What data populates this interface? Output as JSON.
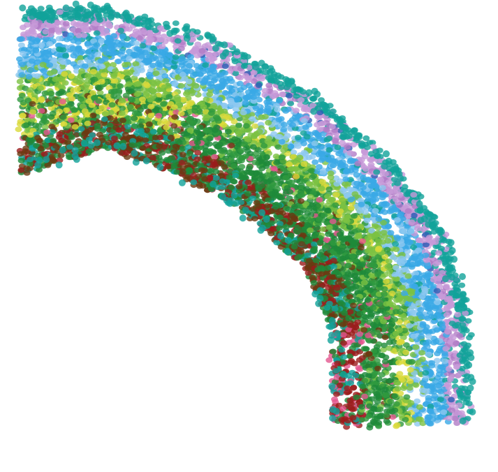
{
  "clusters": [
    {
      "color": "#9b1c1c"
    },
    {
      "color": "#6b3a12"
    },
    {
      "color": "#1e8a3a"
    },
    {
      "color": "#2f9a3f"
    },
    {
      "color": "#7cc242"
    },
    {
      "color": "#d9d93a"
    },
    {
      "color": "#e3568f"
    },
    {
      "color": "#8cc8f0"
    },
    {
      "color": "#3aa9e6"
    },
    {
      "color": "#c79ad8"
    },
    {
      "color": "#b07cc6"
    },
    {
      "color": "#11a39a"
    },
    {
      "color": "#2d5fb5"
    }
  ]
}
